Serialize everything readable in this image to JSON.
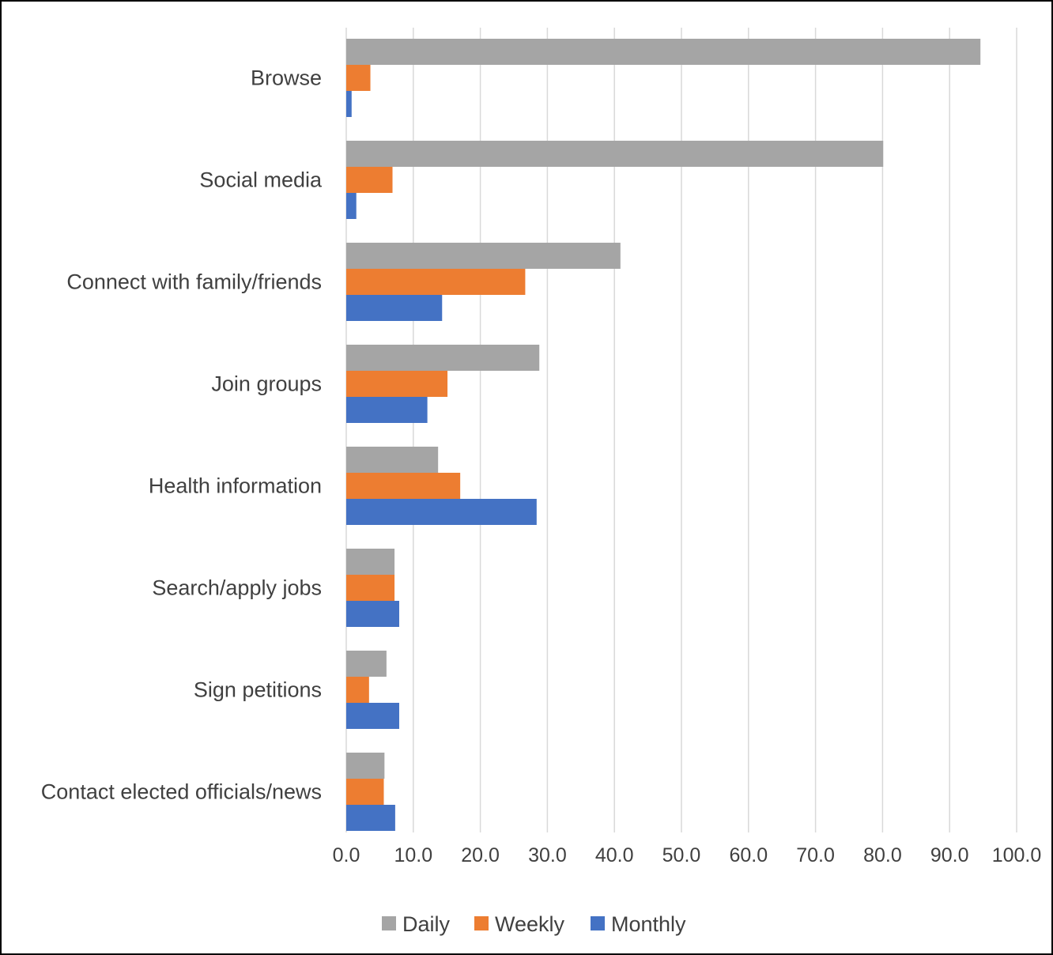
{
  "chart_data": {
    "type": "bar",
    "orientation": "horizontal",
    "categories": [
      "Browse",
      "Social media",
      "Connect with family/friends",
      "Join groups",
      "Health information",
      "Search/apply jobs",
      "Sign petitions",
      "Contact elected officials/news"
    ],
    "series": [
      {
        "name": "Daily",
        "color": "#a5a5a5",
        "values": [
          94.6,
          80.1,
          40.9,
          28.8,
          13.7,
          7.2,
          6.0,
          5.7
        ]
      },
      {
        "name": "Weekly",
        "color": "#ed7d31",
        "values": [
          3.6,
          6.9,
          26.7,
          15.1,
          17.0,
          7.2,
          3.4,
          5.6
        ]
      },
      {
        "name": "Monthly",
        "color": "#4472c4",
        "values": [
          0.8,
          1.5,
          14.3,
          12.1,
          28.4,
          7.9,
          7.9,
          7.3
        ]
      }
    ],
    "xlim": [
      0,
      100
    ],
    "xticks": [
      "0.0",
      "10.0",
      "20.0",
      "30.0",
      "40.0",
      "50.0",
      "60.0",
      "70.0",
      "80.0",
      "90.0",
      "100.0"
    ],
    "grid": true,
    "legend_position": "bottom",
    "title": "",
    "xlabel": "",
    "ylabel": ""
  }
}
